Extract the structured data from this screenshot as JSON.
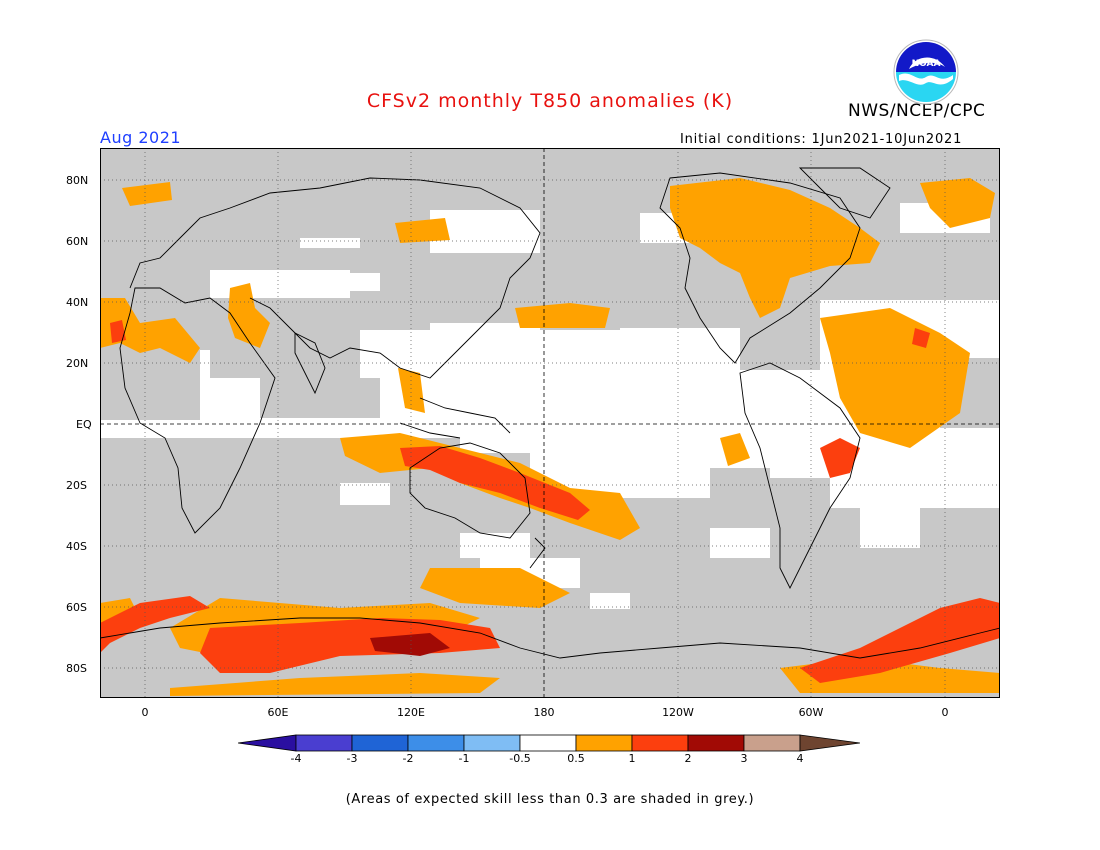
{
  "title": "CFSv2 monthly T850 anomalies (K)",
  "agency": "NWS/NCEP/CPC",
  "logo_text": "NOAA",
  "valid_month": "Aug 2021",
  "initial_conditions": "Initial conditions: 1Jun2021-10Jun2021",
  "lat_labels": [
    "80N",
    "60N",
    "40N",
    "20N",
    "EQ",
    "20S",
    "40S",
    "60S",
    "80S"
  ],
  "lon_labels": [
    "0",
    "60E",
    "120E",
    "180",
    "120W",
    "60W",
    "0"
  ],
  "colorbar": {
    "ticks": [
      "-4",
      "-3",
      "-2",
      "-1",
      "-0.5",
      "0.5",
      "1",
      "2",
      "3",
      "4"
    ],
    "colors": {
      "lt_-4": "#2a0fa0",
      "-4_-3": "#4a3ed0",
      "-3_-2": "#1f64d6",
      "-2_-1": "#3d8ee8",
      "-1_-0.5": "#7fbdf4",
      "-0.5_0.5": "#ffffff",
      "0.5_1": "#ffa200",
      "1_2": "#fc3f0e",
      "2_3": "#a10a05",
      "3_4": "#c9a08c",
      "gt_4": "#6e4430"
    }
  },
  "grey_mask_color": "#c8c8c8",
  "note": "(Areas of expected skill less than 0.3 are shaded in grey.)"
}
